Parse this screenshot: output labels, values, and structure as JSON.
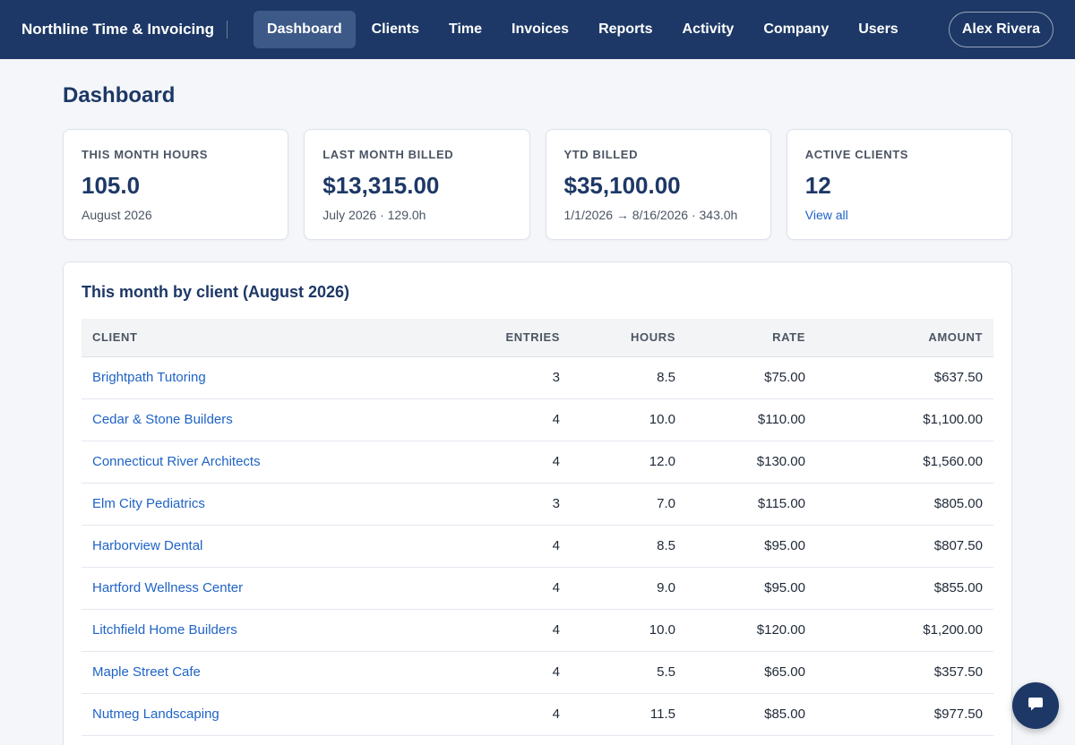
{
  "app": {
    "brand": "Northline Time & Invoicing"
  },
  "nav": {
    "items": [
      {
        "label": "Dashboard",
        "active": true
      },
      {
        "label": "Clients"
      },
      {
        "label": "Time"
      },
      {
        "label": "Invoices"
      },
      {
        "label": "Reports"
      },
      {
        "label": "Activity"
      },
      {
        "label": "Company"
      },
      {
        "label": "Users"
      }
    ],
    "user": "Alex Rivera"
  },
  "page": {
    "title": "Dashboard"
  },
  "stats": [
    {
      "label": "This month hours",
      "value": "105.0",
      "sub": "August 2026"
    },
    {
      "label": "Last month billed",
      "value": "$13,315.00",
      "sub": "July 2026 · 129.0h"
    },
    {
      "label": "YTD billed",
      "value": "$35,100.00",
      "sub": "1/1/2026 → 8/16/2026 · 343.0h"
    },
    {
      "label": "Active clients",
      "value": "12",
      "link": "View all"
    }
  ],
  "panel": {
    "title": "This month by client (August 2026)",
    "columns": [
      "Client",
      "Entries",
      "Hours",
      "Rate",
      "Amount"
    ],
    "rows": [
      {
        "client": "Brightpath Tutoring",
        "entries": "3",
        "hours": "8.5",
        "rate": "$75.00",
        "amount": "$637.50"
      },
      {
        "client": "Cedar & Stone Builders",
        "entries": "4",
        "hours": "10.0",
        "rate": "$110.00",
        "amount": "$1,100.00"
      },
      {
        "client": "Connecticut River Architects",
        "entries": "4",
        "hours": "12.0",
        "rate": "$130.00",
        "amount": "$1,560.00"
      },
      {
        "client": "Elm City Pediatrics",
        "entries": "3",
        "hours": "7.0",
        "rate": "$115.00",
        "amount": "$805.00"
      },
      {
        "client": "Harborview Dental",
        "entries": "4",
        "hours": "8.5",
        "rate": "$95.00",
        "amount": "$807.50"
      },
      {
        "client": "Hartford Wellness Center",
        "entries": "4",
        "hours": "9.0",
        "rate": "$95.00",
        "amount": "$855.00"
      },
      {
        "client": "Litchfield Home Builders",
        "entries": "4",
        "hours": "10.0",
        "rate": "$120.00",
        "amount": "$1,200.00"
      },
      {
        "client": "Maple Street Cafe",
        "entries": "4",
        "hours": "5.5",
        "rate": "$65.00",
        "amount": "$357.50"
      },
      {
        "client": "Nutmeg Landscaping",
        "entries": "4",
        "hours": "11.5",
        "rate": "$85.00",
        "amount": "$977.50"
      }
    ]
  },
  "chat": {
    "icon": "chat-bubble-icon"
  },
  "colors": {
    "nav_bg": "#1d3866",
    "accent_link": "#1f63c6",
    "active_tab": "#3d5987"
  }
}
